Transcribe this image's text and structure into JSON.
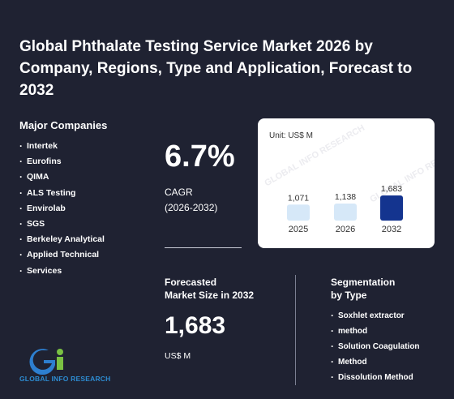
{
  "title": "Global Phthalate Testing Service Market 2026 by Company, Regions, Type and Application, Forecast to 2032",
  "companies": {
    "heading": "Major Companies",
    "items": [
      "Intertek",
      "Eurofins",
      "QIMA",
      "ALS Testing",
      "Envirolab",
      "SGS",
      "Berkeley Analytical",
      "Applied Technical",
      "Services"
    ]
  },
  "cagr": {
    "value": "6.7%",
    "label": "CAGR",
    "period": "(2026-2032)"
  },
  "chart": {
    "unit_label": "Unit: US$ M",
    "watermark": "GLOBAL INFO RESEARCH"
  },
  "chart_data": {
    "type": "bar",
    "categories": [
      "2025",
      "2026",
      "2032"
    ],
    "values": [
      1071,
      1138,
      1683
    ],
    "value_labels": [
      "1,071",
      "1,138",
      "1,683"
    ],
    "colors": [
      "#d6e8f8",
      "#d6e8f8",
      "#14348f"
    ],
    "title": "",
    "xlabel": "",
    "ylabel": ""
  },
  "forecast": {
    "label_line1": "Forecasted",
    "label_line2": "Market Size in 2032",
    "value": "1,683",
    "unit": "US$ M"
  },
  "segmentation": {
    "heading_line1": "Segmentation",
    "heading_line2": "by Type",
    "items": [
      "Soxhlet extractor",
      "method",
      "Solution Coagulation",
      "Method",
      "Dissolution Method"
    ]
  },
  "logo": {
    "text": "GLOBAL INFO RESEARCH",
    "colors": {
      "blue": "#2d7fd0",
      "green": "#7ac143"
    }
  }
}
